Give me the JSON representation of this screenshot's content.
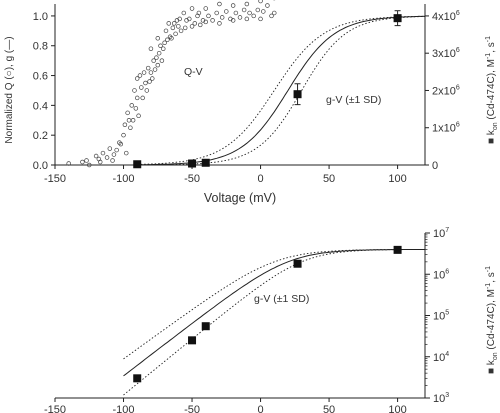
{
  "chart_data": [
    {
      "type": "scatter",
      "panel": "top",
      "xlabel": "Voltage (mV)",
      "ylabel_left": "Normalized Q (○), g (—)",
      "ylabel_right": "■ k",
      "ylabel_right_sub": "on",
      "ylabel_right_rest": " (Cd-474C), M",
      "ylabel_right_rest2": "s",
      "x_ticks": [
        "-150",
        "-100",
        "-50",
        "0",
        "50",
        "100"
      ],
      "y_ticks_left": [
        "0.0",
        "0.2",
        "0.4",
        "0.6",
        "0.8",
        "1.0"
      ],
      "y_ticks_right": [
        {
          "mantissa": "0",
          "exp": ""
        },
        {
          "mantissa": "1x10",
          "exp": "6"
        },
        {
          "mantissa": "2x10",
          "exp": "6"
        },
        {
          "mantissa": "3x10",
          "exp": "6"
        },
        {
          "mantissa": "4x10",
          "exp": "6"
        }
      ],
      "xlim": [
        -150,
        120
      ],
      "ylim_left": [
        0,
        1.08
      ],
      "ylim_right": [
        0,
        4320000
      ],
      "annotations": [
        "Q-V",
        "g-V (±1 SD)"
      ],
      "grid": false,
      "legend": "none",
      "series": [
        {
          "name": "Q-V",
          "style": "open-circle",
          "points": [
            [
              -140,
              0.01
            ],
            [
              -130,
              0.02
            ],
            [
              -127,
              0.03
            ],
            [
              -125,
              0.0
            ],
            [
              -120,
              0.06
            ],
            [
              -118,
              0.04
            ],
            [
              -117,
              0.02
            ],
            [
              -115,
              0.08
            ],
            [
              -112,
              0.05
            ],
            [
              -110,
              0.11
            ],
            [
              -108,
              0.03
            ],
            [
              -107,
              0.07
            ],
            [
              -105,
              0.1
            ],
            [
              -103,
              0.15
            ],
            [
              -102,
              0.14
            ],
            [
              -100,
              0.2
            ],
            [
              -99,
              0.27
            ],
            [
              -98,
              0.08
            ],
            [
              -97,
              0.35
            ],
            [
              -96,
              0.3
            ],
            [
              -95,
              0.25
            ],
            [
              -94,
              0.4
            ],
            [
              -93,
              0.3
            ],
            [
              -92,
              0.5
            ],
            [
              -91,
              0.38
            ],
            [
              -90,
              0.58
            ],
            [
              -90,
              0.45
            ],
            [
              -89,
              0.33
            ],
            [
              -88,
              0.6
            ],
            [
              -87,
              0.52
            ],
            [
              -86,
              0.45
            ],
            [
              -85,
              0.62
            ],
            [
              -84,
              0.55
            ],
            [
              -83,
              0.5
            ],
            [
              -82,
              0.65
            ],
            [
              -81,
              0.56
            ],
            [
              -80,
              0.78
            ],
            [
              -80,
              0.62
            ],
            [
              -79,
              0.58
            ],
            [
              -78,
              0.7
            ],
            [
              -77,
              0.64
            ],
            [
              -76,
              0.72
            ],
            [
              -75,
              0.85
            ],
            [
              -75,
              0.67
            ],
            [
              -74,
              0.75
            ],
            [
              -73,
              0.8
            ],
            [
              -72,
              0.7
            ],
            [
              -71,
              0.78
            ],
            [
              -70,
              0.82
            ],
            [
              -69,
              0.9
            ],
            [
              -68,
              0.84
            ],
            [
              -67,
              0.95
            ],
            [
              -66,
              0.86
            ],
            [
              -65,
              0.85
            ],
            [
              -64,
              0.92
            ],
            [
              -63,
              0.95
            ],
            [
              -62,
              0.88
            ],
            [
              -61,
              0.97
            ],
            [
              -60,
              0.93
            ],
            [
              -59,
              0.98
            ],
            [
              -58,
              0.9
            ],
            [
              -56,
              1.02
            ],
            [
              -55,
              0.92
            ],
            [
              -54,
              0.97
            ],
            [
              -52,
              0.98
            ],
            [
              -50,
              1.05
            ],
            [
              -50,
              0.93
            ],
            [
              -48,
              0.95
            ],
            [
              -46,
              1.0
            ],
            [
              -45,
              1.02
            ],
            [
              -44,
              0.94
            ],
            [
              -42,
              0.97
            ],
            [
              -40,
              1.05
            ],
            [
              -40,
              0.96
            ],
            [
              -38,
              1.0
            ],
            [
              -35,
              0.97
            ],
            [
              -32,
              1.02
            ],
            [
              -30,
              1.08
            ],
            [
              -30,
              0.95
            ],
            [
              -28,
              0.99
            ],
            [
              -25,
              1.03
            ],
            [
              -22,
              0.98
            ],
            [
              -20,
              1.07
            ],
            [
              -20,
              0.97
            ],
            [
              -18,
              1.02
            ],
            [
              -15,
              0.99
            ],
            [
              -12,
              1.04
            ],
            [
              -10,
              1.08
            ],
            [
              -10,
              0.98
            ],
            [
              -8,
              1.02
            ],
            [
              -5,
              1.0
            ],
            [
              -2,
              1.04
            ],
            [
              0,
              1.1
            ],
            [
              0,
              0.98
            ],
            [
              2,
              1.03
            ],
            [
              5,
              1.07
            ],
            [
              8,
              1.0
            ],
            [
              10,
              1.12
            ],
            [
              10,
              1.02
            ]
          ]
        },
        {
          "name": "k_on (Cd-474C)",
          "style": "filled-square",
          "points": [
            [
              -90,
              0.005
            ],
            [
              -50,
              0.01
            ],
            [
              -40,
              0.015
            ],
            [
              27,
              0.475
            ],
            [
              100,
              0.985
            ]
          ],
          "error_bars": [
            [
              27,
              0.07
            ],
            [
              100,
              0.05
            ]
          ]
        },
        {
          "name": "g-V fit",
          "style": "solid-line",
          "v_half": 20,
          "slope_k": 17,
          "ymax": 1.0
        },
        {
          "name": "+1 SD",
          "style": "dotted-line",
          "v_half": 10,
          "slope_k": 18,
          "ymax": 1.0
        },
        {
          "name": "-1 SD",
          "style": "dotted-line",
          "v_half": 30,
          "slope_k": 16,
          "ymax": 1.0
        }
      ]
    },
    {
      "type": "scatter",
      "panel": "bottom",
      "yscale": "log",
      "ylabel_right": "■ k",
      "ylabel_right_sub": "on",
      "ylabel_right_rest": " (Cd-474C), M",
      "ylabel_right_rest2": "s",
      "x_ticks": [
        "-150",
        "-100",
        "-50",
        "0",
        "50",
        "100"
      ],
      "y_ticks_right": [
        {
          "base": "10",
          "exp": "3"
        },
        {
          "base": "10",
          "exp": "4"
        },
        {
          "base": "10",
          "exp": "5"
        },
        {
          "base": "10",
          "exp": "6"
        },
        {
          "base": "10",
          "exp": "7"
        }
      ],
      "xlim": [
        -150,
        120
      ],
      "ylim_right": [
        1000,
        10000000
      ],
      "annotations": [
        "g-V (±1 SD)"
      ],
      "grid": false,
      "legend": "none",
      "series": [
        {
          "name": "k_on (Cd-474C)",
          "style": "filled-square",
          "points": [
            [
              -90,
              3000
            ],
            [
              -50,
              25000
            ],
            [
              -40,
              55000
            ],
            [
              27,
              1800000
            ],
            [
              100,
              3900000
            ]
          ]
        },
        {
          "name": "g-V fit",
          "style": "solid-line",
          "v_half": 20,
          "slope_k": 17,
          "kmax": 4000000
        },
        {
          "name": "+1 SD",
          "style": "dotted-line",
          "v_half": 10,
          "slope_k": 18,
          "kmax": 4000000
        },
        {
          "name": "-1 SD",
          "style": "dotted-line",
          "v_half": 30,
          "slope_k": 16,
          "kmax": 4000000
        }
      ]
    }
  ]
}
